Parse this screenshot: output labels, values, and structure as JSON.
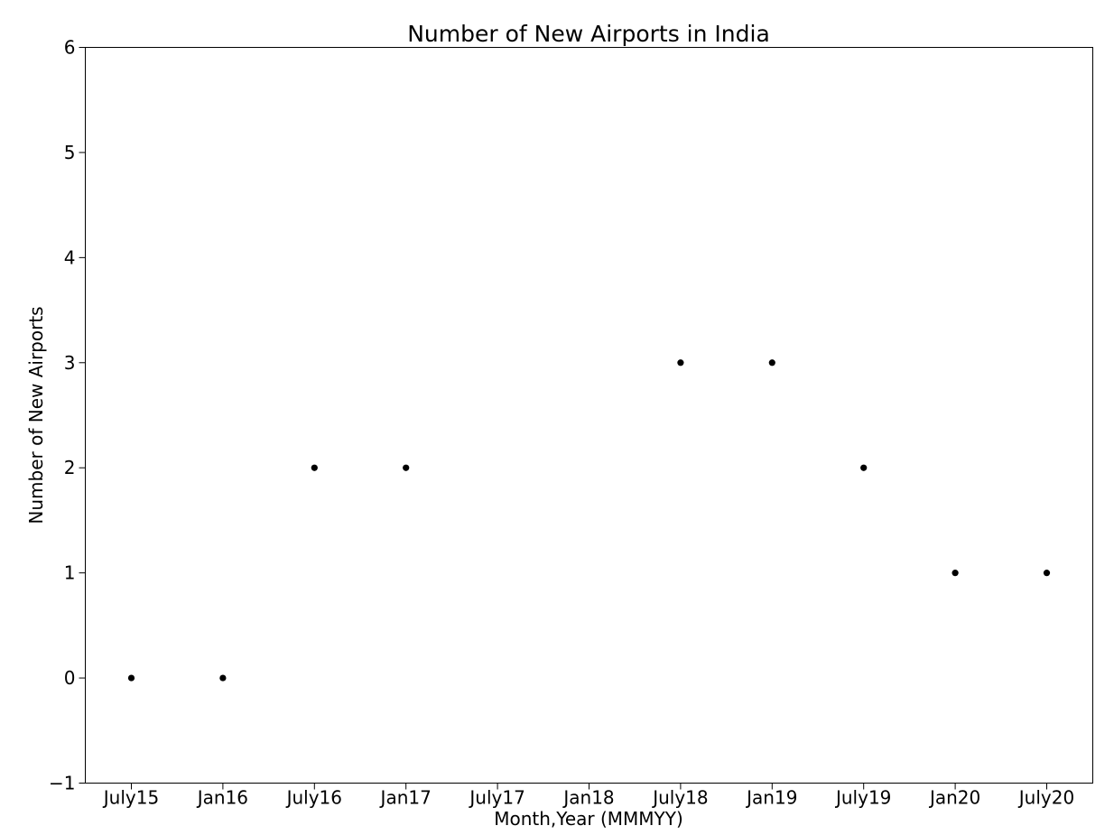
{
  "chart_data": {
    "type": "scatter",
    "title": "Number of New Airports in India",
    "xlabel": "Month,Year (MMMYY)",
    "ylabel": "Number of New Airports",
    "categories": [
      "July15",
      "Jan16",
      "July16",
      "Jan17",
      "July17",
      "Jan18",
      "July18",
      "Jan19",
      "July19",
      "Jan20",
      "July20"
    ],
    "points": [
      {
        "x": "July15",
        "y": 0
      },
      {
        "x": "Jan16",
        "y": 0
      },
      {
        "x": "July16",
        "y": 2
      },
      {
        "x": "Jan17",
        "y": 2
      },
      {
        "x": "July18",
        "y": 3
      },
      {
        "x": "Jan19",
        "y": 3
      },
      {
        "x": "July19",
        "y": 2
      },
      {
        "x": "Jan20",
        "y": 1
      },
      {
        "x": "July20",
        "y": 1
      }
    ],
    "ylim": [
      -1,
      6
    ],
    "yticks": [
      -1,
      0,
      1,
      2,
      3,
      4,
      5,
      6
    ],
    "ytick_labels": [
      "−1",
      "0",
      "1",
      "2",
      "3",
      "4",
      "5",
      "6"
    ],
    "grid": false,
    "marker_color": "#000000"
  }
}
